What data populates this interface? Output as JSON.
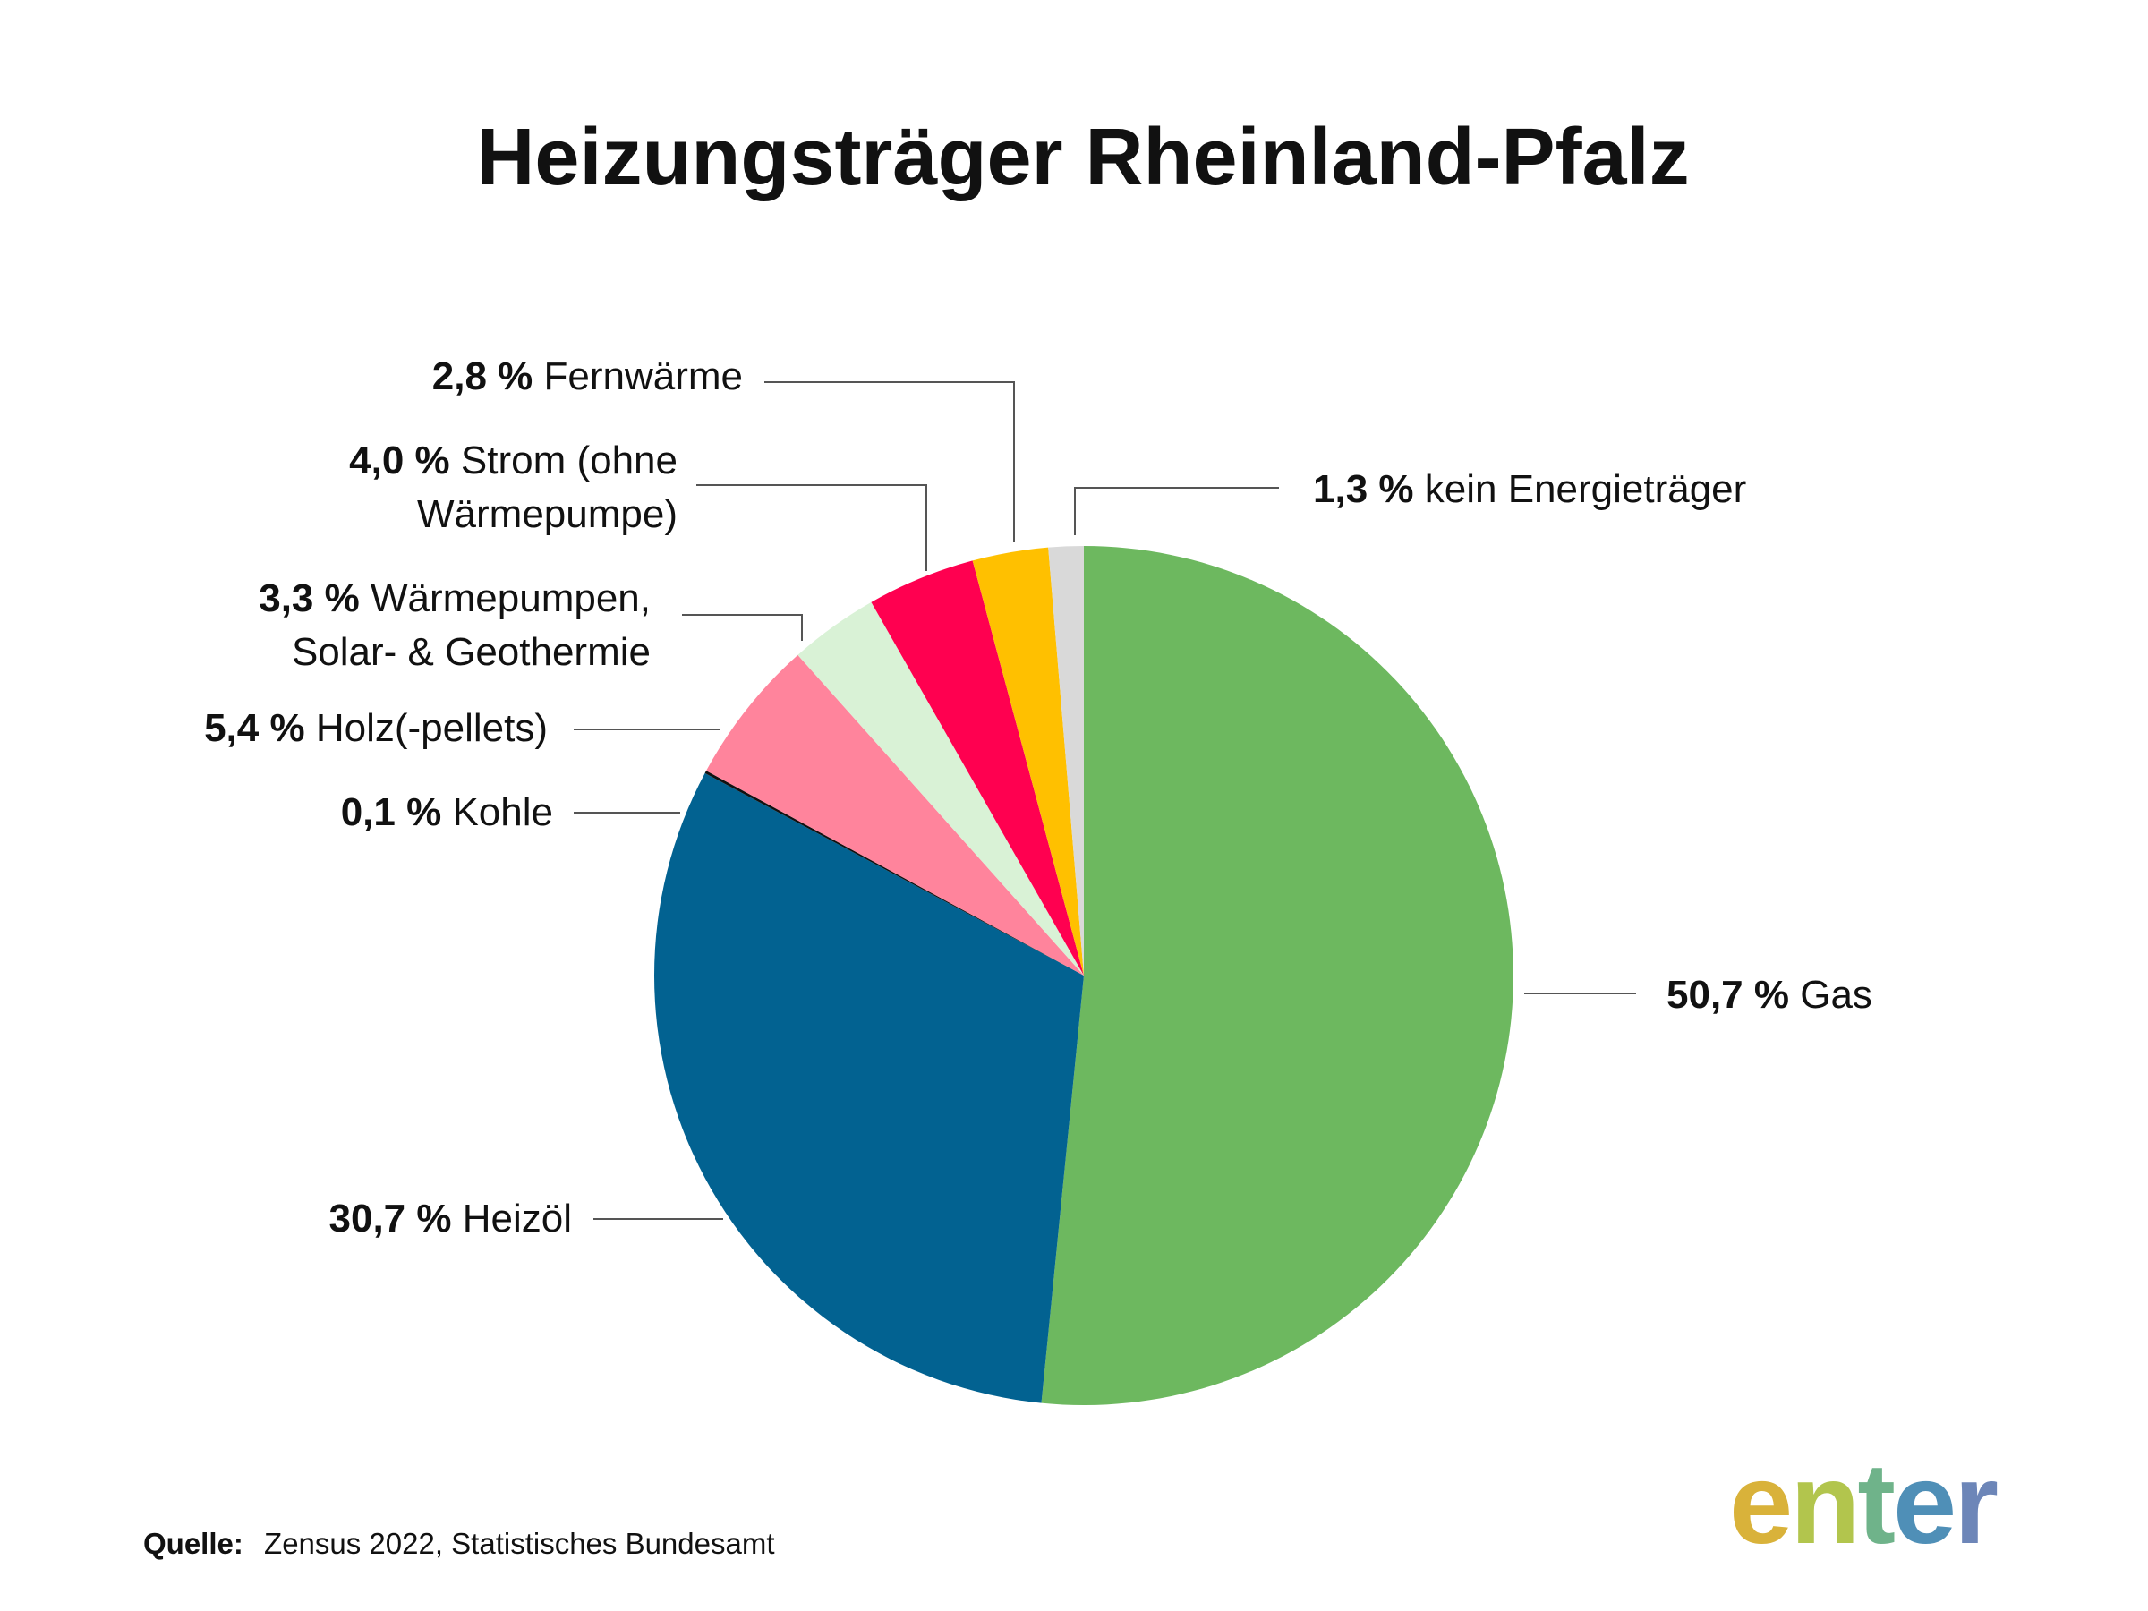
{
  "chart_data": {
    "type": "pie",
    "title": "Heizungsträger Rheinland-Pfalz",
    "start_angle": "top",
    "direction": "clockwise",
    "slices": [
      {
        "name": "Gas",
        "value": 50.7,
        "label_value": "50,7 %",
        "label_lines": [
          "Gas"
        ],
        "color": "#6db85f"
      },
      {
        "name": "Heizöl",
        "value": 30.7,
        "label_value": "30,7 %",
        "label_lines": [
          "Heizöl"
        ],
        "color": "#026291"
      },
      {
        "name": "Kohle",
        "value": 0.1,
        "label_value": "0,1 %",
        "label_lines": [
          "Kohle"
        ],
        "color": "#111111"
      },
      {
        "name": "Holz(-pellets)",
        "value": 5.4,
        "label_value": "5,4 %",
        "label_lines": [
          "Holz(-pellets)"
        ],
        "color": "#ff849c"
      },
      {
        "name": "Wärmepumpen, Solar- & Geothermie",
        "value": 3.3,
        "label_value": "3,3 %",
        "label_lines": [
          "Wärmepumpen,",
          "Solar- & Geothermie"
        ],
        "color": "#d9f2d6"
      },
      {
        "name": "Strom (ohne Wärmepumpe)",
        "value": 4.0,
        "label_value": "4,0 %",
        "label_lines": [
          "Strom (ohne",
          "Wärmepumpe)"
        ],
        "color": "#ff0050"
      },
      {
        "name": "Fernwärme",
        "value": 2.8,
        "label_value": "2,8 %",
        "label_lines": [
          "Fernwärme"
        ],
        "color": "#ffc000"
      },
      {
        "name": "kein Energieträger",
        "value": 1.3,
        "label_value": "1,3 %",
        "label_lines": [
          "kein Energieträger"
        ],
        "color": "#d9d9d9"
      }
    ],
    "legend": "none",
    "labels": "outside with leader lines"
  },
  "source": {
    "label": "Quelle:",
    "text": "Zensus 2022, Statistisches Bundesamt"
  },
  "logo": {
    "text": "enter",
    "colors": [
      "#d9b23a",
      "#b2c54d",
      "#6fb38a",
      "#4f8fb7",
      "#6d86b8"
    ]
  }
}
